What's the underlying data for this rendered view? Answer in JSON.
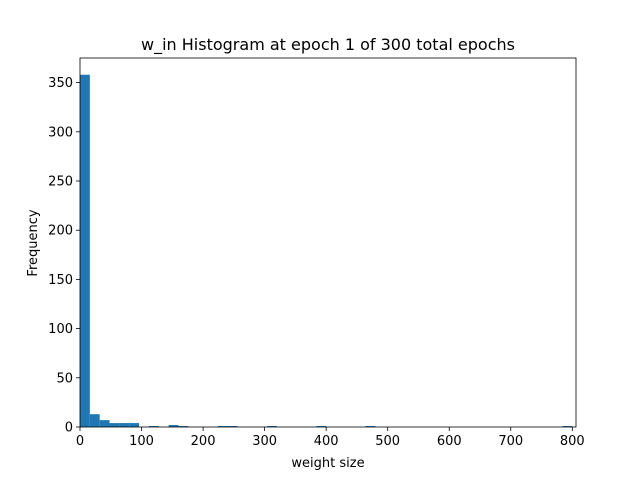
{
  "chart_data": {
    "type": "bar",
    "title": "w_in Histogram at epoch 1 of 300 total epochs",
    "xlabel": "weight size",
    "ylabel": "Frequency",
    "xlim": [
      0,
      806
    ],
    "ylim": [
      0,
      375
    ],
    "xticks": [
      0,
      100,
      200,
      300,
      400,
      500,
      600,
      700,
      800
    ],
    "yticks": [
      0,
      50,
      100,
      150,
      200,
      250,
      300,
      350
    ],
    "bin_width": 16,
    "bins": [
      {
        "x0": 0,
        "count": 358
      },
      {
        "x0": 16,
        "count": 13
      },
      {
        "x0": 32,
        "count": 7
      },
      {
        "x0": 48,
        "count": 4
      },
      {
        "x0": 64,
        "count": 4
      },
      {
        "x0": 80,
        "count": 4
      },
      {
        "x0": 112,
        "count": 1
      },
      {
        "x0": 144,
        "count": 2
      },
      {
        "x0": 160,
        "count": 1
      },
      {
        "x0": 224,
        "count": 1
      },
      {
        "x0": 240,
        "count": 1
      },
      {
        "x0": 304,
        "count": 1
      },
      {
        "x0": 384,
        "count": 1
      },
      {
        "x0": 464,
        "count": 1
      },
      {
        "x0": 784,
        "count": 1
      }
    ],
    "bar_color": "#1f77b4",
    "grid": false,
    "legend": false
  }
}
